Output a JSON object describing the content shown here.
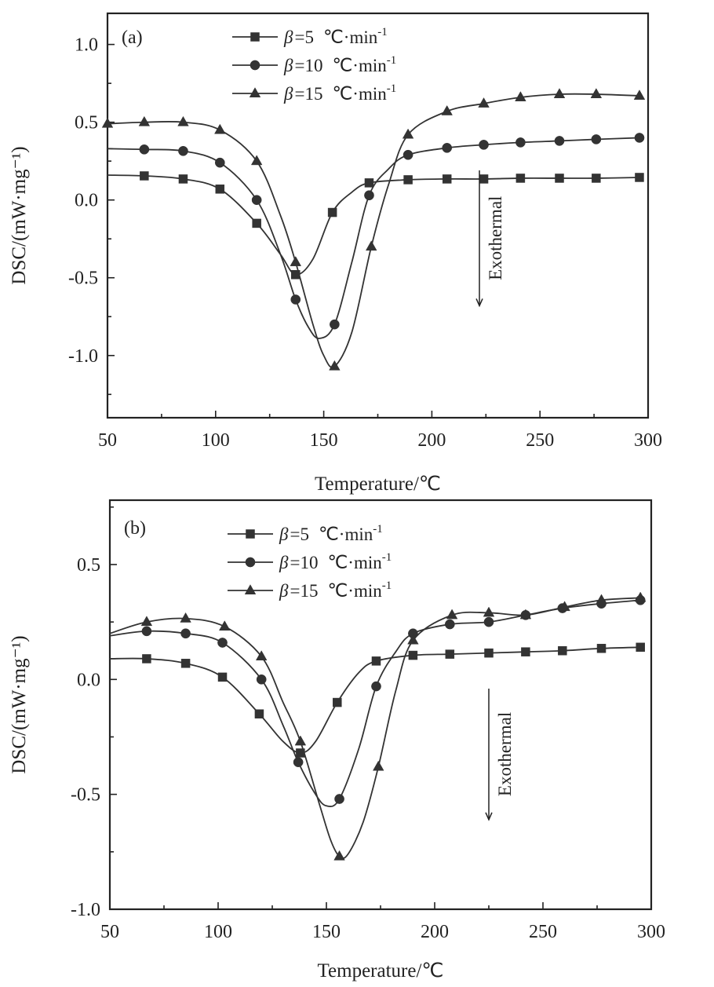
{
  "chart_data": [
    {
      "type": "line",
      "panel_label": "(a)",
      "title": "",
      "xlabel": "Temperature/℃",
      "ylabel": "DSC/(mW·mg⁻¹)",
      "xlim": [
        50,
        300
      ],
      "ylim": [
        -1.4,
        1.2
      ],
      "xticks": [
        50,
        100,
        150,
        200,
        250,
        300
      ],
      "xtick_labels": [
        "50",
        "100",
        "150",
        "200",
        "250",
        "300"
      ],
      "yticks": [
        -1.0,
        -0.5,
        0.0,
        0.5,
        1.0
      ],
      "ytick_labels": [
        "-1.0",
        "-0.5",
        "0.0",
        "0.5",
        "1.0"
      ],
      "legend_position": "top-left",
      "annotation": {
        "text": "Exothermal",
        "arrow": "down",
        "x": 222,
        "y_from": 0.19,
        "y_to": -0.68
      },
      "series": [
        {
          "name": "β=5 ℃·min⁻¹",
          "legend_prefix": "β",
          "legend_eq": "=5",
          "legend_unit": "℃·min",
          "legend_exp": "-1",
          "marker": "square",
          "x": [
            50,
            67,
            85,
            102,
            119,
            130,
            137,
            145,
            154,
            163,
            171,
            189,
            207,
            224,
            241,
            259,
            276,
            296
          ],
          "y": [
            0.16,
            0.155,
            0.135,
            0.07,
            -0.15,
            -0.35,
            -0.48,
            -0.38,
            -0.08,
            0.05,
            0.11,
            0.13,
            0.135,
            0.135,
            0.14,
            0.14,
            0.14,
            0.145
          ],
          "marker_x": [
            67,
            85,
            102,
            119,
            137,
            154,
            171,
            189,
            207,
            224,
            241,
            259,
            276,
            296
          ],
          "marker_y": [
            0.155,
            0.135,
            0.07,
            -0.15,
            -0.48,
            -0.08,
            0.11,
            0.13,
            0.135,
            0.135,
            0.14,
            0.14,
            0.14,
            0.145
          ]
        },
        {
          "name": "β=10 ℃·min⁻¹",
          "legend_prefix": "β",
          "legend_eq": "=10",
          "legend_unit": "℃·min",
          "legend_exp": "-1",
          "marker": "circle",
          "x": [
            50,
            67,
            85,
            102,
            119,
            130,
            137,
            143,
            148,
            155,
            163,
            171,
            180,
            189,
            207,
            224,
            241,
            259,
            276,
            296
          ],
          "y": [
            0.33,
            0.325,
            0.315,
            0.24,
            0.0,
            -0.35,
            -0.64,
            -0.82,
            -0.89,
            -0.8,
            -0.4,
            0.03,
            0.2,
            0.29,
            0.335,
            0.355,
            0.37,
            0.38,
            0.39,
            0.4
          ],
          "marker_x": [
            67,
            85,
            102,
            119,
            137,
            155,
            171,
            189,
            207,
            224,
            241,
            259,
            276,
            296
          ],
          "marker_y": [
            0.325,
            0.315,
            0.24,
            0.0,
            -0.64,
            -0.8,
            0.03,
            0.29,
            0.335,
            0.355,
            0.37,
            0.38,
            0.39,
            0.4
          ]
        },
        {
          "name": "β=15 ℃·min⁻¹",
          "legend_prefix": "β",
          "legend_eq": "=15",
          "legend_unit": "℃·min",
          "legend_exp": "-1",
          "marker": "triangle",
          "x": [
            50,
            67,
            85,
            102,
            119,
            130,
            137,
            145,
            150,
            155,
            163,
            172,
            180,
            189,
            207,
            224,
            241,
            259,
            276,
            296
          ],
          "y": [
            0.49,
            0.5,
            0.5,
            0.45,
            0.25,
            -0.1,
            -0.4,
            -0.8,
            -1.0,
            -1.07,
            -0.85,
            -0.3,
            0.1,
            0.42,
            0.57,
            0.62,
            0.66,
            0.68,
            0.68,
            0.67
          ],
          "marker_x": [
            50,
            67,
            85,
            102,
            119,
            137,
            155,
            172,
            189,
            207,
            224,
            241,
            259,
            276,
            296
          ],
          "marker_y": [
            0.49,
            0.5,
            0.5,
            0.45,
            0.25,
            -0.4,
            -1.07,
            -0.3,
            0.42,
            0.57,
            0.62,
            0.66,
            0.68,
            0.68,
            0.67
          ]
        }
      ]
    },
    {
      "type": "line",
      "panel_label": "(b)",
      "title": "",
      "xlabel": "Temperature/℃",
      "ylabel": "DSC/(mW·mg⁻¹)",
      "xlim": [
        50,
        300
      ],
      "ylim": [
        -1.0,
        0.78
      ],
      "xticks": [
        50,
        100,
        150,
        200,
        250,
        300
      ],
      "xtick_labels": [
        "50",
        "100",
        "150",
        "200",
        "250",
        "300"
      ],
      "yticks": [
        -1.0,
        -0.5,
        0.0,
        0.5
      ],
      "ytick_labels": [
        "-1.0",
        "-0.5",
        "0.0",
        "0.5"
      ],
      "legend_position": "top-left",
      "annotation": {
        "text": "Exothermal",
        "arrow": "down",
        "x": 225,
        "y_from": -0.04,
        "y_to": -0.61
      },
      "series": [
        {
          "name": "β=5 ℃·min⁻¹",
          "legend_prefix": "β",
          "legend_eq": "=5",
          "legend_unit": "℃·min",
          "legend_exp": "-1",
          "marker": "square",
          "x": [
            50,
            67,
            85,
            102,
            119,
            130,
            138,
            145,
            155,
            165,
            173,
            190,
            207,
            225,
            242,
            259,
            277,
            295
          ],
          "y": [
            0.09,
            0.09,
            0.07,
            0.01,
            -0.15,
            -0.27,
            -0.32,
            -0.27,
            -0.1,
            0.03,
            0.08,
            0.105,
            0.11,
            0.115,
            0.12,
            0.125,
            0.135,
            0.14
          ],
          "marker_x": [
            67,
            85,
            102,
            119,
            138,
            155,
            173,
            190,
            207,
            225,
            242,
            259,
            277,
            295
          ],
          "marker_y": [
            0.09,
            0.07,
            0.01,
            -0.15,
            -0.32,
            -0.1,
            0.08,
            0.105,
            0.11,
            0.115,
            0.12,
            0.125,
            0.135,
            0.14
          ]
        },
        {
          "name": "β=10 ℃·min⁻¹",
          "legend_prefix": "β",
          "legend_eq": "=10",
          "legend_unit": "℃·min",
          "legend_exp": "-1",
          "marker": "circle",
          "x": [
            50,
            67,
            85,
            102,
            120,
            130,
            137,
            145,
            150,
            156,
            165,
            173,
            182,
            190,
            207,
            225,
            242,
            259,
            277,
            295
          ],
          "y": [
            0.19,
            0.21,
            0.2,
            0.16,
            0.0,
            -0.2,
            -0.36,
            -0.5,
            -0.55,
            -0.52,
            -0.3,
            -0.03,
            0.12,
            0.2,
            0.24,
            0.25,
            0.28,
            0.31,
            0.33,
            0.345
          ],
          "marker_x": [
            67,
            85,
            102,
            120,
            137,
            156,
            173,
            190,
            207,
            225,
            242,
            259,
            277,
            295
          ],
          "marker_y": [
            0.21,
            0.2,
            0.16,
            0.0,
            -0.36,
            -0.52,
            -0.03,
            0.2,
            0.24,
            0.25,
            0.28,
            0.31,
            0.33,
            0.345
          ]
        },
        {
          "name": "β=15 ℃·min⁻¹",
          "legend_prefix": "β",
          "legend_eq": "=15",
          "legend_unit": "℃·min",
          "legend_exp": "-1",
          "marker": "triangle",
          "x": [
            50,
            67,
            85,
            103,
            120,
            130,
            138,
            147,
            152,
            156,
            160,
            167,
            174,
            182,
            190,
            208,
            225,
            242,
            260,
            277,
            295
          ],
          "y": [
            0.2,
            0.25,
            0.265,
            0.23,
            0.1,
            -0.1,
            -0.27,
            -0.55,
            -0.7,
            -0.77,
            -0.76,
            -0.62,
            -0.38,
            -0.05,
            0.17,
            0.28,
            0.29,
            0.28,
            0.315,
            0.345,
            0.355
          ],
          "marker_x": [
            67,
            85,
            103,
            120,
            138,
            156,
            174,
            190,
            208,
            225,
            242,
            260,
            277,
            295
          ],
          "marker_y": [
            0.25,
            0.265,
            0.23,
            0.1,
            -0.27,
            -0.77,
            -0.38,
            0.17,
            0.28,
            0.29,
            0.28,
            0.315,
            0.345,
            0.355
          ]
        }
      ]
    }
  ]
}
